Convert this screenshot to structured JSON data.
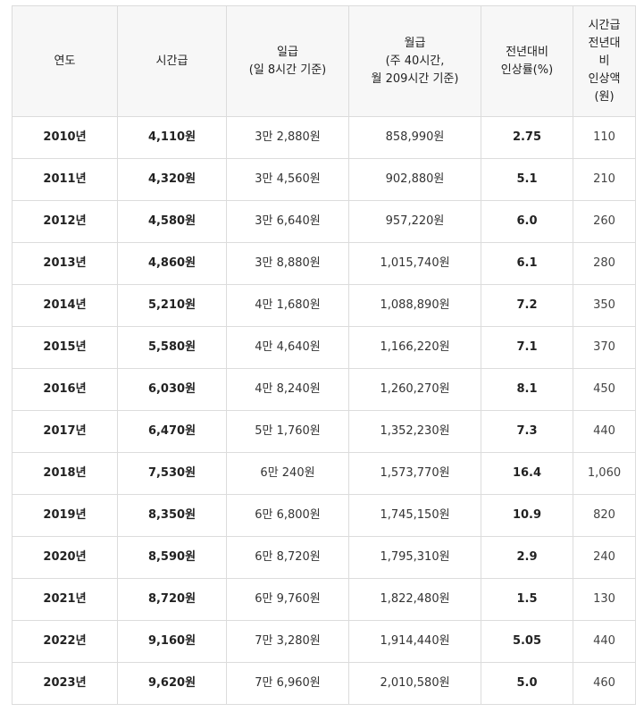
{
  "table": {
    "headers": [
      [
        "연도"
      ],
      [
        "시간급"
      ],
      [
        "일급",
        "(일 8시간 기준)"
      ],
      [
        "월급",
        "(주 40시간,",
        "월 209시간 기준)"
      ],
      [
        "전년대비",
        "인상률(%)"
      ],
      [
        "시간급",
        "전년대",
        "비",
        "인상액",
        "(원)"
      ]
    ],
    "rows": [
      [
        "2010년",
        "4,110원",
        "3만 2,880원",
        "858,990원",
        "2.75",
        "110"
      ],
      [
        "2011년",
        "4,320원",
        "3만 4,560원",
        "902,880원",
        "5.1",
        "210"
      ],
      [
        "2012년",
        "4,580원",
        "3만 6,640원",
        "957,220원",
        "6.0",
        "260"
      ],
      [
        "2013년",
        "4,860원",
        "3만 8,880원",
        "1,015,740원",
        "6.1",
        "280"
      ],
      [
        "2014년",
        "5,210원",
        "4만 1,680원",
        "1,088,890원",
        "7.2",
        "350"
      ],
      [
        "2015년",
        "5,580원",
        "4만 4,640원",
        "1,166,220원",
        "7.1",
        "370"
      ],
      [
        "2016년",
        "6,030원",
        "4만 8,240원",
        "1,260,270원",
        "8.1",
        "450"
      ],
      [
        "2017년",
        "6,470원",
        "5만 1,760원",
        "1,352,230원",
        "7.3",
        "440"
      ],
      [
        "2018년",
        "7,530원",
        "6만 240원",
        "1,573,770원",
        "16.4",
        "1,060"
      ],
      [
        "2019년",
        "8,350원",
        "6만 6,800원",
        "1,745,150원",
        "10.9",
        "820"
      ],
      [
        "2020년",
        "8,590원",
        "6만 8,720원",
        "1,795,310원",
        "2.9",
        "240"
      ],
      [
        "2021년",
        "8,720원",
        "6만 9,760원",
        "1,822,480원",
        "1.5",
        "130"
      ],
      [
        "2022년",
        "9,160원",
        "7만 3,280원",
        "1,914,440원",
        "5.05",
        "440"
      ],
      [
        "2023년",
        "9,620원",
        "7만 6,960원",
        "2,010,580원",
        "5.0",
        "460"
      ]
    ]
  },
  "colors": {
    "border": "#dcdcdc",
    "header_bg": "#f7f7f7",
    "text": "#222222"
  }
}
